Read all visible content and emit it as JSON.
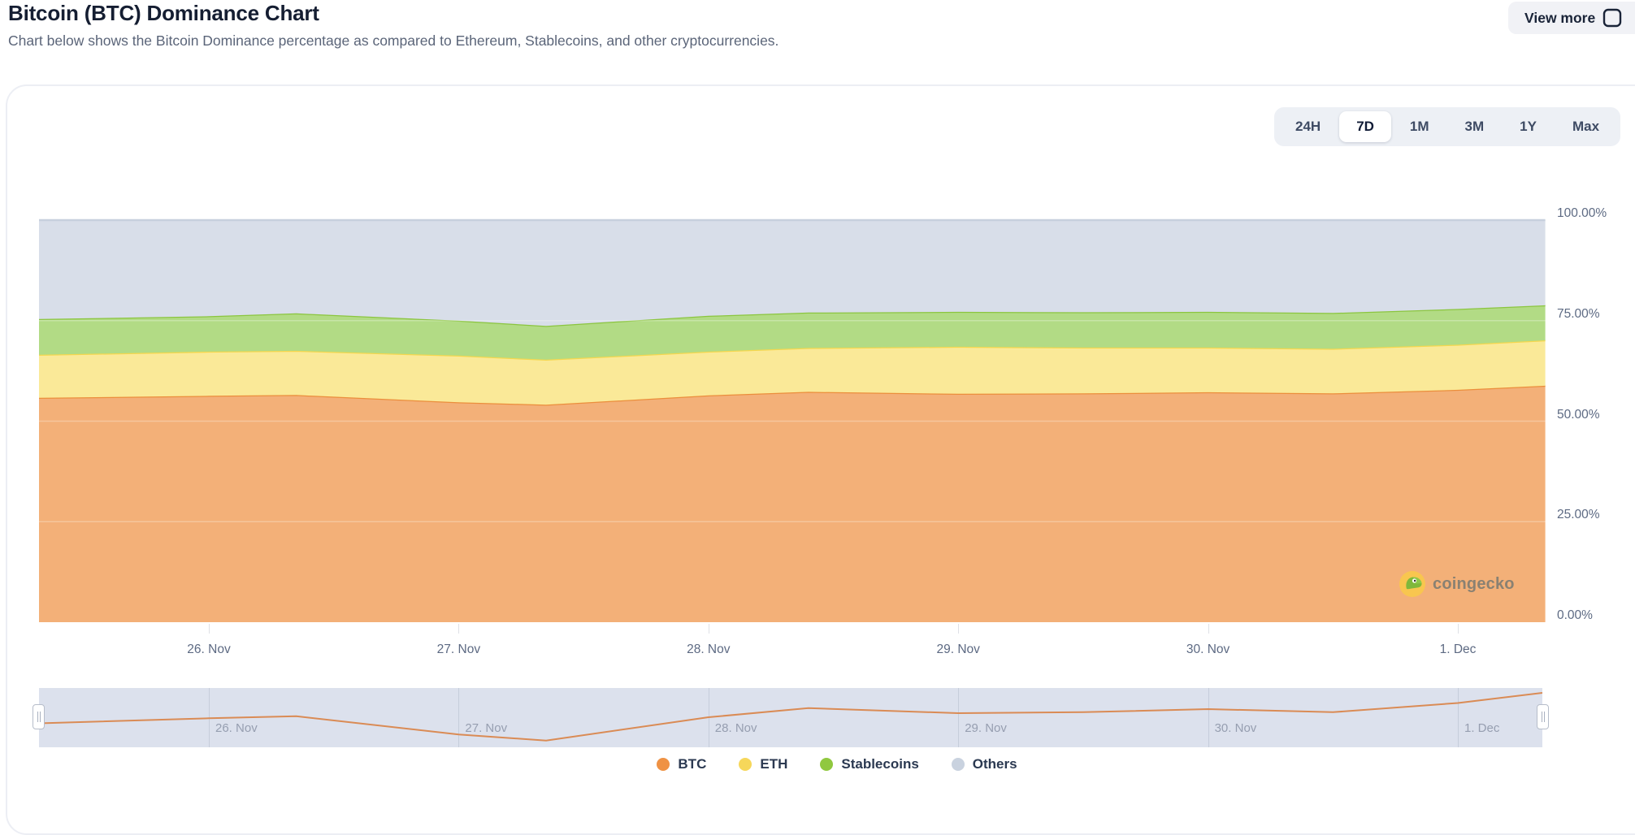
{
  "header": {
    "title": "Bitcoin (BTC) Dominance Chart",
    "subtitle": "Chart below shows the Bitcoin Dominance percentage as compared to Ethereum, Stablecoins, and other cryptocurrencies.",
    "view_more_label": "View more"
  },
  "range_selector": {
    "options": [
      "24H",
      "7D",
      "1M",
      "3M",
      "1Y",
      "Max"
    ],
    "selected": "7D"
  },
  "chart_data": {
    "type": "area",
    "stacked": true,
    "unit": "%",
    "ylim": [
      0,
      100
    ],
    "grid": "faint horizontal lines at 25/50/75",
    "legend_position": "bottom-center",
    "y_ticks": [
      {
        "value": 100,
        "label": "100.00%"
      },
      {
        "value": 75,
        "label": "75.00%"
      },
      {
        "value": 50,
        "label": "50.00%"
      },
      {
        "value": 25,
        "label": "25.00%"
      },
      {
        "value": 0,
        "label": "0.00%"
      }
    ],
    "x_ticks": [
      {
        "t": 0,
        "label": "26. Nov"
      },
      {
        "t": 1,
        "label": "27. Nov"
      },
      {
        "t": 2,
        "label": "28. Nov"
      },
      {
        "t": 3,
        "label": "29. Nov"
      },
      {
        "t": 4,
        "label": "30. Nov"
      },
      {
        "t": 5,
        "label": "1. Dec"
      }
    ],
    "x_unit": "days, 0 = 26. Nov",
    "t": [
      -0.68,
      0,
      0.35,
      1,
      1.35,
      2,
      2.4,
      3,
      3.5,
      4,
      4.5,
      5,
      5.35
    ],
    "series": [
      {
        "name": "BTC",
        "stroke": "#eb8e3c",
        "fill": "#f3b078",
        "marker": "#ef9244",
        "values": [
          55.8,
          56.3,
          56.5,
          54.7,
          54.1,
          56.4,
          57.3,
          56.8,
          56.9,
          57.2,
          56.9,
          57.8,
          58.8
        ]
      },
      {
        "name": "ETH",
        "stroke": "#f5d74e",
        "fill": "#fae998",
        "marker": "#f6d75a",
        "values": [
          10.7,
          11.0,
          11.0,
          11.6,
          11.2,
          10.9,
          10.9,
          11.7,
          11.4,
          11.1,
          11.1,
          11.2,
          11.3
        ]
      },
      {
        "name": "Stablecoins",
        "stroke": "#8bc53f",
        "fill": "#b2db85",
        "marker": "#90c83f",
        "values": [
          8.9,
          8.8,
          9.3,
          8.7,
          8.4,
          8.9,
          8.8,
          8.7,
          8.8,
          8.9,
          8.9,
          8.9,
          8.7
        ]
      },
      {
        "name": "Others",
        "stroke": "#c7d0dd",
        "fill": "#d8dee9",
        "marker": "#c9d2df",
        "values": [
          24.6,
          23.9,
          23.2,
          25.0,
          26.3,
          23.8,
          23.0,
          22.8,
          22.9,
          22.8,
          23.1,
          22.1,
          21.2
        ]
      }
    ],
    "watermark": "coingecko"
  },
  "navigator": {
    "labels": [
      "26. Nov",
      "27. Nov",
      "28. Nov",
      "29. Nov",
      "30. Nov",
      "1. Dec"
    ],
    "line_series": "BTC",
    "line_color": "#da8b55"
  }
}
